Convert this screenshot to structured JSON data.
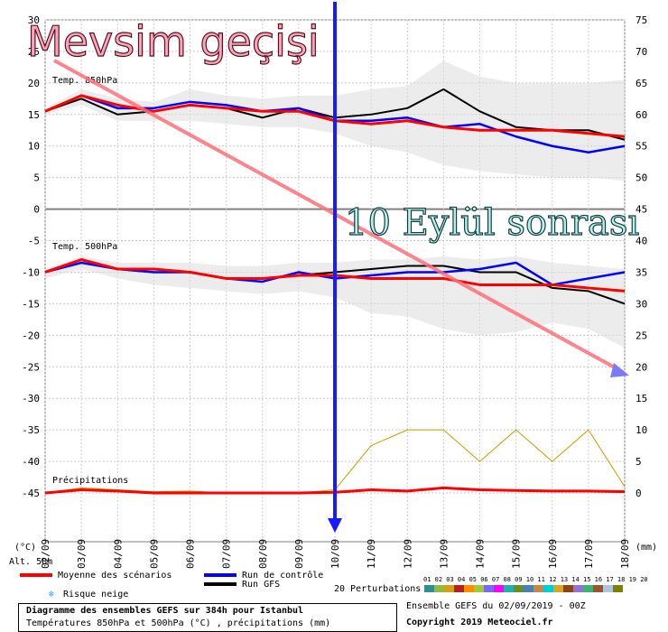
{
  "overlay": {
    "title": "Mevsim geçişi",
    "date_note": "10 Eylül sonrası"
  },
  "axis": {
    "left_ticks": [
      "30",
      "25",
      "20",
      "15",
      "10",
      "5",
      "0",
      "-5",
      "-10",
      "-15",
      "-20",
      "-25",
      "-30",
      "-35",
      "-40",
      "-45"
    ],
    "right_ticks": [
      "75",
      "70",
      "65",
      "60",
      "55",
      "50",
      "45",
      "40",
      "35",
      "30",
      "25",
      "20",
      "15",
      "10",
      "5",
      "0"
    ],
    "x_ticks": [
      "02/09",
      "03/09",
      "04/09",
      "05/09",
      "06/09",
      "07/09",
      "08/09",
      "09/09",
      "10/09",
      "11/09",
      "12/09",
      "13/09",
      "14/09",
      "15/09",
      "16/09",
      "17/09",
      "18/09"
    ],
    "left_unit": "(°C)",
    "right_unit": "(mm)",
    "altitude": "Alt. 58m"
  },
  "panels": {
    "t850": "Temp. 850hPa",
    "t500": "Temp. 500hPa",
    "precip": "Précipitations"
  },
  "legend": {
    "mean": "Moyenne des scénarios",
    "control": "Run de contrôle",
    "gfs": "Run GFS",
    "snow": "Risque neige",
    "perturbations": "20 Perturbations",
    "pert_numbers": "01 02 03 04 05 06 07 08 09 10 11 12 13 14 15 16 17 18 19 20",
    "colors": {
      "mean": "#ff0000",
      "control": "#0000ff",
      "gfs": "#000000",
      "snow": "#3aa0ff"
    }
  },
  "footer": {
    "title": "Diagramme des ensembles GEFS sur 384h pour Istanbul",
    "subtitle": "Températures 850hPa et 500hPa (°C) , précipitations (mm)",
    "ensemble": "Ensemble GEFS du 02/09/2019 - 00Z",
    "copyright": "Copyright 2019 Meteociel.fr"
  },
  "pert_colors": [
    "#2f8f8f",
    "#8fbc3f",
    "#d4a017",
    "#b22222",
    "#ff8c00",
    "#9acd32",
    "#7b68ee",
    "#ff00ff",
    "#20b2aa",
    "#6b8e23",
    "#4682b4",
    "#cd853f",
    "#00ced1",
    "#daa520",
    "#8b4513",
    "#9370db",
    "#3cb371",
    "#a0522d",
    "#b0c4de",
    "#808000"
  ],
  "chart_data": {
    "type": "line",
    "x": [
      "02/09",
      "03/09",
      "04/09",
      "05/09",
      "06/09",
      "07/09",
      "08/09",
      "09/09",
      "10/09",
      "11/09",
      "12/09",
      "13/09",
      "14/09",
      "15/09",
      "16/09",
      "17/09",
      "18/09"
    ],
    "t850": {
      "mean": [
        15.5,
        18,
        16.5,
        15.5,
        16.5,
        16,
        15.5,
        15.5,
        14,
        13.5,
        14,
        13,
        12.5,
        12.5,
        12.5,
        12,
        11.5
      ],
      "control": [
        15.5,
        18,
        16,
        16,
        17,
        16.5,
        15.5,
        16,
        14,
        14,
        14.5,
        13,
        13.5,
        11.5,
        10,
        9,
        10
      ],
      "gfs": [
        15.5,
        17.5,
        15,
        15.5,
        16.5,
        16,
        14.5,
        16,
        14.5,
        15,
        16,
        19,
        15.5,
        13,
        12.5,
        12.5,
        11
      ],
      "range_min": [
        15,
        16.5,
        14,
        14,
        14,
        13.5,
        13,
        13,
        12,
        10,
        9,
        7,
        6,
        5.5,
        5,
        5,
        4.5
      ],
      "range_max": [
        16,
        19,
        17.5,
        17,
        19,
        18,
        17.5,
        18,
        18,
        19,
        19.5,
        23.5,
        21,
        20,
        20,
        20,
        20.5
      ]
    },
    "t500": {
      "mean": [
        -10,
        -8,
        -9.5,
        -9.5,
        -10,
        -11,
        -11,
        -10.5,
        -10.5,
        -11,
        -11,
        -11,
        -12,
        -12,
        -12,
        -12.5,
        -13
      ],
      "control": [
        -10,
        -8.5,
        -9.5,
        -10,
        -10,
        -11,
        -11.5,
        -10,
        -11,
        -10.5,
        -10,
        -10,
        -9.5,
        -8.5,
        -12,
        -11,
        -10
      ],
      "gfs": [
        -10,
        -8,
        -9.5,
        -10,
        -10,
        -11,
        -11,
        -10.5,
        -10,
        -9.5,
        -9,
        -9,
        -10,
        -10,
        -12.5,
        -13,
        -15
      ],
      "range_min": [
        -11,
        -9.5,
        -11,
        -12,
        -12.5,
        -13,
        -13.5,
        -13,
        -14,
        -16.5,
        -17,
        -19,
        -20,
        -19.5,
        -18,
        -19,
        -22
      ],
      "range_max": [
        -9.5,
        -7.5,
        -8.5,
        -8.5,
        -8.5,
        -9,
        -9,
        -8.5,
        -8.5,
        -8,
        -8,
        -7.5,
        -8,
        -7.5,
        -8.5,
        -9,
        -9.5
      ]
    },
    "precip_mm": {
      "mean": [
        0,
        0.5,
        0.3,
        0,
        0,
        0,
        0,
        0,
        0.1,
        0.5,
        0.3,
        0.8,
        0.5,
        0.4,
        0.3,
        0.3,
        0.2
      ],
      "range_max": [
        0,
        0.8,
        0.5,
        0.2,
        0.3,
        0,
        0,
        0,
        0.5,
        7.5,
        10,
        10,
        5,
        10,
        5,
        10,
        1
      ]
    },
    "ylim_left": [
      -45,
      30
    ],
    "ylim_right_mm": [
      0,
      75
    ],
    "xlabel": "",
    "ylabel_left": "(°C)",
    "ylabel_right": "(mm)"
  }
}
